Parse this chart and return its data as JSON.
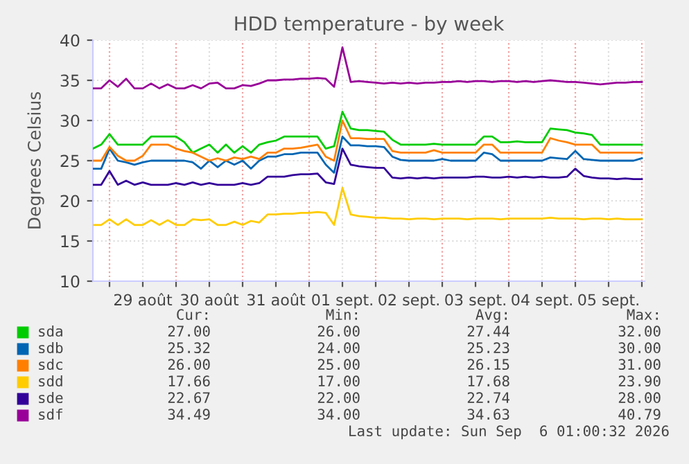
{
  "chart_data": {
    "type": "line",
    "title": "HDD temperature - by week",
    "ylabel": "Degrees Celsius",
    "x": [
      "2026-08-28T18:00",
      "2026-08-28T21:00",
      "2026-08-29T00:00",
      "2026-08-29T03:00",
      "2026-08-29T06:00",
      "2026-08-29T09:00",
      "2026-08-29T12:00",
      "2026-08-29T15:00",
      "2026-08-29T18:00",
      "2026-08-29T21:00",
      "2026-08-30T00:00",
      "2026-08-30T03:00",
      "2026-08-30T06:00",
      "2026-08-30T09:00",
      "2026-08-30T12:00",
      "2026-08-30T15:00",
      "2026-08-30T18:00",
      "2026-08-30T21:00",
      "2026-08-31T00:00",
      "2026-08-31T03:00",
      "2026-08-31T06:00",
      "2026-08-31T09:00",
      "2026-08-31T12:00",
      "2026-08-31T15:00",
      "2026-08-31T18:00",
      "2026-08-31T21:00",
      "2026-09-01T00:00",
      "2026-09-01T03:00",
      "2026-09-01T06:00",
      "2026-09-01T09:00",
      "2026-09-01T12:00",
      "2026-09-01T15:00",
      "2026-09-01T18:00",
      "2026-09-01T21:00",
      "2026-09-02T00:00",
      "2026-09-02T03:00",
      "2026-09-02T06:00",
      "2026-09-02T09:00",
      "2026-09-02T12:00",
      "2026-09-02T15:00",
      "2026-09-02T18:00",
      "2026-09-02T21:00",
      "2026-09-03T00:00",
      "2026-09-03T03:00",
      "2026-09-03T06:00",
      "2026-09-03T09:00",
      "2026-09-03T12:00",
      "2026-09-03T15:00",
      "2026-09-03T18:00",
      "2026-09-03T21:00",
      "2026-09-04T00:00",
      "2026-09-04T03:00",
      "2026-09-04T06:00",
      "2026-09-04T09:00",
      "2026-09-04T12:00",
      "2026-09-04T15:00",
      "2026-09-04T18:00",
      "2026-09-04T21:00",
      "2026-09-05T00:00",
      "2026-09-05T03:00",
      "2026-09-05T06:00",
      "2026-09-05T09:00",
      "2026-09-05T12:00",
      "2026-09-05T15:00",
      "2026-09-05T18:00",
      "2026-09-05T21:00",
      "2026-09-06T00:00"
    ],
    "series": [
      {
        "name": "sda",
        "color": "#00cc00",
        "values": [
          26.5,
          27,
          28.3,
          27,
          27,
          27,
          27,
          28,
          28,
          28,
          28,
          27.3,
          26,
          26.5,
          27,
          26,
          27,
          26,
          26.8,
          26,
          27,
          27.3,
          27.5,
          28,
          28,
          28,
          28,
          28,
          26.5,
          26.8,
          31.1,
          29,
          28.8,
          28.8,
          28.7,
          28.6,
          27.6,
          27,
          27,
          27,
          27,
          27.1,
          27,
          27,
          27,
          27,
          27,
          28,
          28,
          27.3,
          27.3,
          27.4,
          27.3,
          27.3,
          27.3,
          29,
          28.9,
          28.8,
          28.5,
          28.4,
          28.2,
          27,
          27,
          27,
          27,
          27,
          27
        ]
      },
      {
        "name": "sdb",
        "color": "#0066b3",
        "values": [
          24,
          24,
          26.5,
          25,
          24.8,
          24.5,
          24.8,
          25,
          25,
          25,
          25,
          25,
          24.8,
          24,
          25,
          24.2,
          25,
          24.5,
          25,
          24,
          25,
          25.5,
          25.5,
          25.8,
          25.8,
          26,
          26,
          26,
          24.5,
          23.5,
          28,
          26.9,
          26.9,
          26.8,
          26.8,
          26.7,
          25.5,
          25.1,
          25,
          25,
          25,
          25,
          25.2,
          25,
          25,
          25,
          25,
          26,
          25.8,
          25,
          25,
          25,
          25,
          25,
          25,
          25.4,
          25.3,
          25.2,
          26.2,
          25.2,
          25.1,
          25,
          25,
          25,
          25,
          25,
          25.3
        ]
      },
      {
        "name": "sdc",
        "color": "#ff8000",
        "values": [
          25,
          25,
          26.7,
          25.6,
          25,
          25,
          25.6,
          27,
          27,
          27,
          26.5,
          26.2,
          26,
          25.5,
          25,
          25.3,
          25,
          25.4,
          25.2,
          25.5,
          25.2,
          26,
          26,
          26.5,
          26.5,
          26.6,
          26.8,
          27,
          25.5,
          25,
          30,
          27.8,
          27.8,
          27.7,
          27.7,
          27.7,
          26.2,
          26,
          26,
          26,
          26,
          26.3,
          26,
          26,
          26,
          26,
          26,
          27,
          27,
          26,
          26,
          26,
          26,
          26,
          26,
          27.8,
          27.5,
          27.3,
          27,
          27,
          27,
          26,
          26,
          26,
          26,
          26,
          26
        ]
      },
      {
        "name": "sdd",
        "color": "#ffcc00",
        "values": [
          17,
          17,
          17.7,
          17,
          17.7,
          17,
          17,
          17.6,
          17,
          17.6,
          17,
          17,
          17.7,
          17.6,
          17.7,
          17,
          17,
          17.4,
          17,
          17.5,
          17.3,
          18.3,
          18.3,
          18.4,
          18.4,
          18.5,
          18.5,
          18.6,
          18.5,
          17,
          21.6,
          18.3,
          18.1,
          18,
          17.9,
          17.9,
          17.8,
          17.8,
          17.7,
          17.8,
          17.8,
          17.7,
          17.8,
          17.8,
          17.8,
          17.7,
          17.8,
          17.8,
          17.8,
          17.7,
          17.8,
          17.8,
          17.8,
          17.8,
          17.8,
          17.9,
          17.8,
          17.8,
          17.8,
          17.7,
          17.8,
          17.8,
          17.7,
          17.8,
          17.7,
          17.7,
          17.7
        ]
      },
      {
        "name": "sde",
        "color": "#330099",
        "values": [
          22,
          22,
          23.7,
          22,
          22.5,
          22,
          22.3,
          22,
          22,
          22,
          22.2,
          22,
          22.3,
          22,
          22.2,
          22,
          22,
          22,
          22.2,
          22,
          22.2,
          23,
          23,
          23,
          23.2,
          23.3,
          23.3,
          23.4,
          22.3,
          22.1,
          26.5,
          24.5,
          24.3,
          24.2,
          24.1,
          24.1,
          22.9,
          22.8,
          22.9,
          22.8,
          22.9,
          22.8,
          22.9,
          22.9,
          22.9,
          22.9,
          23,
          23,
          22.9,
          22.9,
          23,
          22.9,
          23,
          22.9,
          23,
          22.9,
          22.9,
          23,
          24,
          23.1,
          22.9,
          22.8,
          22.8,
          22.7,
          22.8,
          22.7,
          22.7
        ]
      },
      {
        "name": "sdf",
        "color": "#990099",
        "values": [
          34,
          34,
          35,
          34.2,
          35.2,
          34,
          34,
          34.6,
          34,
          34.5,
          34,
          34,
          34.4,
          34,
          34.6,
          34.7,
          34,
          34,
          34.4,
          34.3,
          34.6,
          35,
          35,
          35.1,
          35.1,
          35.2,
          35.2,
          35.3,
          35.2,
          34.2,
          39.1,
          34.8,
          34.9,
          34.8,
          34.7,
          34.6,
          34.7,
          34.6,
          34.7,
          34.6,
          34.7,
          34.7,
          34.8,
          34.8,
          34.9,
          34.8,
          34.9,
          34.9,
          34.8,
          34.9,
          34.9,
          34.8,
          34.9,
          34.8,
          34.9,
          35,
          34.9,
          34.8,
          34.8,
          34.7,
          34.6,
          34.5,
          34.6,
          34.7,
          34.7,
          34.8,
          34.8
        ]
      }
    ],
    "xlim": [
      "2026-08-28T18:00",
      "2026-09-06T01:00"
    ],
    "xticks": [
      {
        "value": "2026-08-29T00:00",
        "label": null
      },
      {
        "value": "2026-08-29T12:00",
        "label": "29 août"
      },
      {
        "value": "2026-08-30T00:00",
        "label": null
      },
      {
        "value": "2026-08-30T12:00",
        "label": "30 août"
      },
      {
        "value": "2026-08-31T00:00",
        "label": null
      },
      {
        "value": "2026-08-31T12:00",
        "label": "31 août"
      },
      {
        "value": "2026-09-01T00:00",
        "label": null
      },
      {
        "value": "2026-09-01T12:00",
        "label": "01 sept."
      },
      {
        "value": "2026-09-02T00:00",
        "label": null
      },
      {
        "value": "2026-09-02T12:00",
        "label": "02 sept."
      },
      {
        "value": "2026-09-03T00:00",
        "label": null
      },
      {
        "value": "2026-09-03T12:00",
        "label": "03 sept."
      },
      {
        "value": "2026-09-04T00:00",
        "label": null
      },
      {
        "value": "2026-09-04T12:00",
        "label": "04 sept."
      },
      {
        "value": "2026-09-05T00:00",
        "label": null
      },
      {
        "value": "2026-09-05T12:00",
        "label": "05 sept."
      },
      {
        "value": "2026-09-06T00:00",
        "label": null
      }
    ],
    "ylim": [
      10,
      40
    ],
    "yticks": [
      10,
      15,
      20,
      25,
      30,
      35,
      40
    ],
    "grid": true,
    "legend": "bottom",
    "marker": "none",
    "line_style": "solid",
    "annotations": [
      "Cur:",
      "Min:",
      "Avg:",
      "Max:",
      "27.00",
      "26.00",
      "27.44",
      "32.00",
      "25.32",
      "24.00",
      "25.23",
      "30.00",
      "26.00",
      "25.00",
      "26.15",
      "31.00",
      "17.66",
      "17.00",
      "17.68",
      "23.90",
      "22.67",
      "22.00",
      "22.74",
      "28.00",
      "34.49",
      "34.00",
      "34.63",
      "40.79",
      "Last update: Sun Sep  6 01:00:32 2026"
    ]
  }
}
